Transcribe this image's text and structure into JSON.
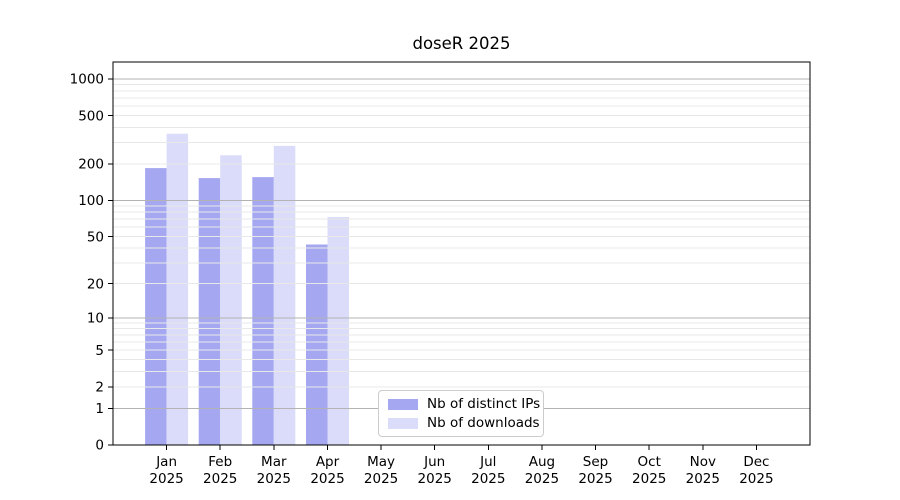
{
  "chart_data": {
    "type": "bar",
    "title": "doseR 2025",
    "categories": [
      "Jan 2025",
      "Feb 2025",
      "Mar 2025",
      "Apr 2025",
      "May 2025",
      "Jun 2025",
      "Jul 2025",
      "Aug 2025",
      "Sep 2025",
      "Oct 2025",
      "Nov 2025",
      "Dec 2025"
    ],
    "series": [
      {
        "name": "Nb of distinct IPs",
        "color": "#a5a7f1",
        "values": [
          185,
          153,
          156,
          43,
          0,
          0,
          0,
          0,
          0,
          0,
          0,
          0
        ]
      },
      {
        "name": "Nb of downloads",
        "color": "#dadcf9",
        "values": [
          355,
          236,
          282,
          73,
          0,
          0,
          0,
          0,
          0,
          0,
          0,
          0
        ]
      }
    ],
    "xlabel": "",
    "ylabel": "",
    "yscale": "log10(value+1)",
    "yticks": [
      0,
      1,
      2,
      5,
      10,
      20,
      50,
      100,
      200,
      500,
      1000
    ],
    "ylim": [
      0,
      1380
    ],
    "grid": "on",
    "legend_position": "lower center",
    "colors": {
      "axis": "#000000",
      "major_grid": "#b3b3b3",
      "minor_grid": "#e8e8e8",
      "tick_label": "#000000",
      "legend_border": "#cccccc",
      "background": "#ffffff"
    }
  }
}
